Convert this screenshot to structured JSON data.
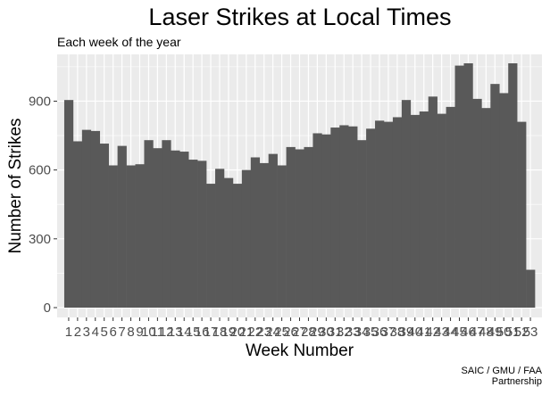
{
  "chart_data": {
    "type": "bar",
    "title": "Laser Strikes at Local Times",
    "subtitle": "Each week of the year",
    "xlabel": "Week Number",
    "ylabel": "Number of Strikes",
    "caption": [
      "SAIC / GMU / FAA",
      "Partnership"
    ],
    "ylim": [
      0,
      1100
    ],
    "yticks": [
      0,
      300,
      600,
      900
    ],
    "grid": true,
    "background_color": "#ebebeb",
    "bar_color": "#595959",
    "categories": [
      "1",
      "2",
      "3",
      "4",
      "5",
      "6",
      "7",
      "8",
      "9",
      "10",
      "11",
      "12",
      "13",
      "14",
      "15",
      "16",
      "17",
      "18",
      "19",
      "20",
      "21",
      "22",
      "23",
      "24",
      "25",
      "26",
      "27",
      "28",
      "29",
      "30",
      "31",
      "32",
      "33",
      "34",
      "35",
      "36",
      "37",
      "38",
      "39",
      "40",
      "41",
      "42",
      "43",
      "44",
      "45",
      "46",
      "47",
      "48",
      "49",
      "50",
      "51",
      "52",
      "53"
    ],
    "values": [
      905,
      725,
      775,
      770,
      715,
      620,
      705,
      620,
      625,
      730,
      695,
      730,
      685,
      680,
      645,
      640,
      540,
      605,
      565,
      540,
      600,
      655,
      630,
      670,
      620,
      700,
      690,
      700,
      760,
      755,
      785,
      795,
      790,
      730,
      780,
      815,
      810,
      830,
      905,
      840,
      855,
      920,
      845,
      875,
      1055,
      1065,
      910,
      870,
      975,
      935,
      1065,
      810,
      165
    ]
  }
}
